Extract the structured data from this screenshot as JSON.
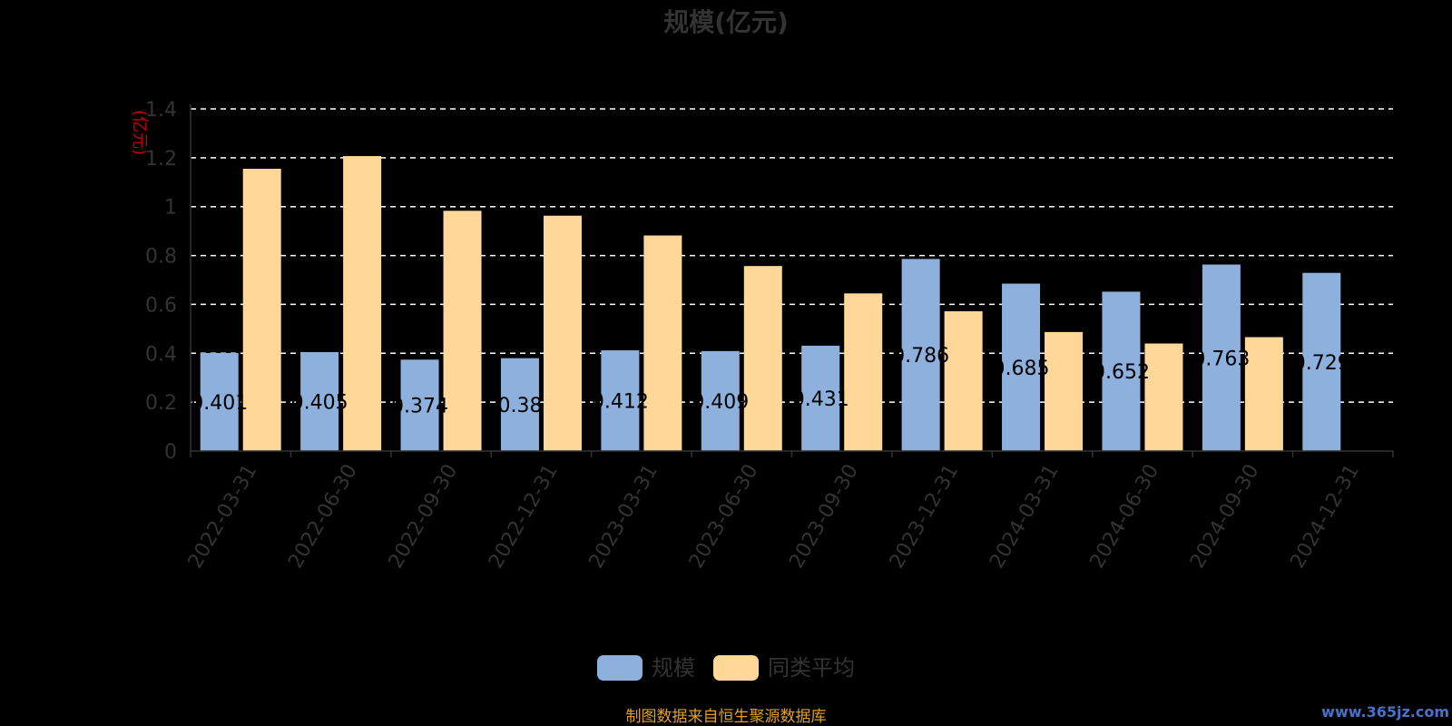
{
  "chart_data": {
    "type": "bar",
    "title": "规模(亿元)",
    "ylabel": "(亿元)",
    "ylim": [
      0,
      1.4
    ],
    "yticks": [
      "0",
      "0.2",
      "0.4",
      "0.6",
      "0.8",
      "1",
      "1.2",
      "1.4"
    ],
    "grid": true,
    "legend_position": "bottom",
    "categories": [
      "2022-03-31",
      "2022-06-30",
      "2022-09-30",
      "2022-12-31",
      "2023-03-31",
      "2023-06-30",
      "2023-09-30",
      "2023-12-31",
      "2024-03-31",
      "2024-06-30",
      "2024-09-30",
      "2024-12-31"
    ],
    "series": [
      {
        "name": "规模",
        "color": "#8eb0dd",
        "values": [
          0.401,
          0.405,
          0.374,
          0.38,
          0.412,
          0.409,
          0.431,
          0.786,
          0.685,
          0.652,
          0.763,
          0.729
        ],
        "labels": [
          "0.401",
          "0.405",
          "0.374",
          "0.38",
          "0.412",
          "0.409",
          "0.431",
          "0.786",
          "0.685",
          "0.652",
          "0.763",
          "0.729"
        ]
      },
      {
        "name": "同类平均",
        "color": "#ffd899",
        "values": [
          1.155,
          1.207,
          0.983,
          0.963,
          0.882,
          0.757,
          0.645,
          0.572,
          0.487,
          0.44,
          0.466,
          null
        ]
      }
    ]
  },
  "footer": {
    "source": "制图数据来自恒生聚源数据库",
    "watermark": "www.365jz.com"
  },
  "colors": {
    "background": "#000000",
    "axis_text": "#333333",
    "ylabel": "#cc0000",
    "grid": "#ffffff",
    "source": "#e0a020",
    "watermark": "#4a70c8"
  }
}
